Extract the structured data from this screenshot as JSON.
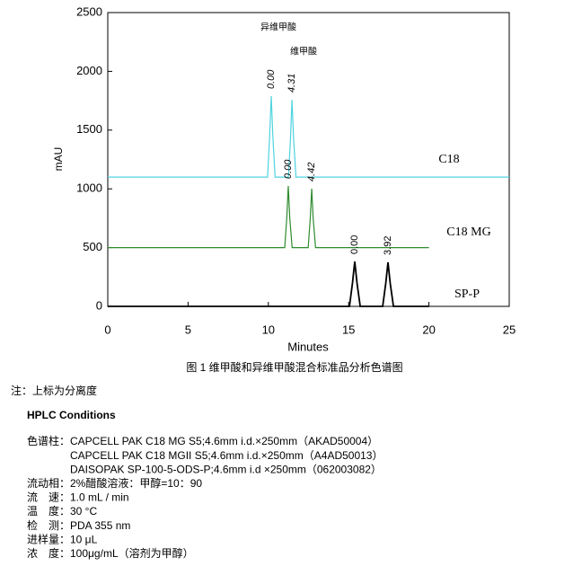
{
  "chart_data": {
    "type": "line",
    "xlabel": "Minutes",
    "ylabel": "mAU",
    "caption": "图 1  维甲酸和异维甲酸混合标准品分析色谱图",
    "annotations": [
      "异维甲酸",
      "维甲酸"
    ],
    "xlim": [
      0,
      25
    ],
    "xticks": [
      0,
      5,
      10,
      15,
      20,
      25
    ],
    "ylim": [
      0,
      2500
    ],
    "yticks": [
      0,
      500,
      1000,
      1500,
      2000,
      2500
    ],
    "grid": false,
    "series": [
      {
        "name": "C18",
        "color": "#4fd3e0",
        "x": [
          0,
          9.95,
          10.08,
          10.18,
          10.28,
          10.42,
          11.25,
          11.38,
          11.47,
          11.57,
          11.72,
          25
        ],
        "values": [
          1100,
          1100,
          1450,
          1789,
          1450,
          1100,
          1100,
          1430,
          1758,
          1430,
          1100,
          1100
        ],
        "peak_labels": [
          "0.00",
          "4.31"
        ],
        "label_color": "#888"
      },
      {
        "name": "C18 MG",
        "color": "#2e8b2e",
        "x": [
          0,
          11.02,
          11.15,
          11.24,
          11.33,
          11.48,
          12.48,
          12.61,
          12.7,
          12.79,
          12.94,
          20
        ],
        "values": [
          500,
          500,
          760,
          1024,
          760,
          500,
          500,
          750,
          1001,
          750,
          500,
          500
        ],
        "peak_labels": [
          "0.00",
          "4.42"
        ],
        "label_color": "#888"
      },
      {
        "name": "SP-P",
        "color": "#000000",
        "x": [
          0,
          15.05,
          15.24,
          15.38,
          15.52,
          15.72,
          17.12,
          17.31,
          17.45,
          17.59,
          17.79,
          20
        ],
        "values": [
          0,
          0,
          200,
          382,
          200,
          0,
          0,
          195,
          375,
          195,
          0,
          0
        ],
        "peak_labels": [
          "0.00",
          "3.92"
        ],
        "label_color": "#000"
      }
    ]
  },
  "notes": {
    "note": "注：上标为分离度",
    "heading": "HPLC Conditions",
    "conditions": [
      {
        "label": "色谱柱：",
        "values": [
          "CAPCELL PAK C18 MG S5;4.6mm i.d.×250mm（AKAD50004）",
          "CAPCELL PAK C18 MGII S5;4.6mm i.d.×250mm（A4AD50013）",
          "DAISOPAK SP-100-5-ODS-P;4.6mm i.d  ×250mm（062003082）"
        ]
      },
      {
        "label": "流动相：",
        "values": [
          "2%醋酸溶液：甲醇=10：90"
        ]
      },
      {
        "label": "流　速：",
        "values": [
          "1.0 mL / min"
        ]
      },
      {
        "label": "温　度：",
        "values": [
          "30 °C"
        ]
      },
      {
        "label": "检　测：",
        "values": [
          "PDA 355 nm"
        ]
      },
      {
        "label": "进样量：",
        "values": [
          "10 μL"
        ]
      },
      {
        "label": "浓　度：",
        "values": [
          "100μg/mL（溶剂为甲醇）"
        ]
      }
    ]
  }
}
